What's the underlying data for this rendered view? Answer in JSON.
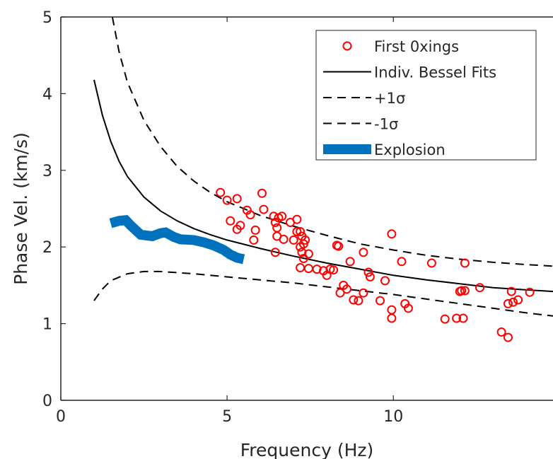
{
  "chart_data": {
    "type": "scatter",
    "title": "",
    "xlabel": "Frequency (Hz)",
    "ylabel": "Phase Vel. (km/s)",
    "xlim": [
      0,
      14.8
    ],
    "ylim": [
      0,
      5
    ],
    "x_ticks": [
      "0",
      "5",
      "10"
    ],
    "y_ticks": [
      "0",
      "1",
      "2",
      "3",
      "4",
      "5"
    ],
    "grid": false,
    "legend_position": "top-right",
    "series": [
      {
        "name": "First 0xings",
        "kind": "markers",
        "marker": "circle-open",
        "color": "#ff0000",
        "points": [
          [
            4.8,
            2.71
          ],
          [
            5.0,
            2.61
          ],
          [
            5.3,
            2.63
          ],
          [
            5.1,
            2.34
          ],
          [
            5.4,
            2.28
          ],
          [
            5.3,
            2.23
          ],
          [
            5.6,
            2.48
          ],
          [
            5.7,
            2.42
          ],
          [
            5.8,
            2.09
          ],
          [
            5.85,
            2.22
          ],
          [
            6.05,
            2.7
          ],
          [
            6.1,
            2.49
          ],
          [
            6.4,
            2.4
          ],
          [
            6.45,
            2.32
          ],
          [
            6.5,
            2.25
          ],
          [
            6.55,
            2.38
          ],
          [
            6.65,
            2.4
          ],
          [
            6.5,
            2.14
          ],
          [
            6.45,
            1.93
          ],
          [
            6.7,
            2.1
          ],
          [
            6.9,
            2.32
          ],
          [
            7.0,
            2.09
          ],
          [
            7.1,
            2.36
          ],
          [
            7.1,
            2.2
          ],
          [
            7.2,
            2.2
          ],
          [
            7.25,
            2.14
          ],
          [
            7.2,
            2.0
          ],
          [
            7.3,
            2.04
          ],
          [
            7.35,
            2.09
          ],
          [
            7.25,
            1.93
          ],
          [
            7.3,
            1.85
          ],
          [
            7.45,
            1.91
          ],
          [
            7.2,
            1.73
          ],
          [
            7.45,
            1.72
          ],
          [
            7.7,
            1.71
          ],
          [
            7.9,
            1.69
          ],
          [
            8.0,
            1.63
          ],
          [
            8.1,
            1.71
          ],
          [
            8.2,
            1.7
          ],
          [
            8.3,
            2.02
          ],
          [
            8.35,
            2.01
          ],
          [
            8.4,
            1.4
          ],
          [
            8.5,
            1.5
          ],
          [
            8.6,
            1.45
          ],
          [
            8.7,
            1.81
          ],
          [
            8.8,
            1.31
          ],
          [
            8.95,
            1.3
          ],
          [
            9.1,
            1.93
          ],
          [
            9.1,
            1.4
          ],
          [
            9.25,
            1.67
          ],
          [
            9.3,
            1.61
          ],
          [
            9.6,
            1.3
          ],
          [
            9.75,
            1.56
          ],
          [
            9.95,
            2.17
          ],
          [
            9.95,
            1.18
          ],
          [
            9.95,
            1.07
          ],
          [
            10.25,
            1.81
          ],
          [
            10.35,
            1.26
          ],
          [
            10.45,
            1.2
          ],
          [
            11.15,
            1.79
          ],
          [
            11.55,
            1.06
          ],
          [
            11.9,
            1.07
          ],
          [
            12.0,
            1.42
          ],
          [
            12.05,
            1.43
          ],
          [
            12.1,
            1.07
          ],
          [
            12.15,
            1.79
          ],
          [
            12.15,
            1.43
          ],
          [
            12.6,
            1.47
          ],
          [
            13.25,
            0.89
          ],
          [
            13.45,
            0.82
          ],
          [
            13.45,
            1.26
          ],
          [
            13.55,
            1.42
          ],
          [
            13.6,
            1.28
          ],
          [
            13.75,
            1.31
          ],
          [
            14.1,
            1.41
          ]
        ]
      },
      {
        "name": "Indiv. Bessel Fits",
        "kind": "line",
        "dash": "solid",
        "color": "#000000",
        "points": [
          [
            1.0,
            4.18
          ],
          [
            1.25,
            3.72
          ],
          [
            1.5,
            3.38
          ],
          [
            1.75,
            3.12
          ],
          [
            2.0,
            2.92
          ],
          [
            2.5,
            2.65
          ],
          [
            3.0,
            2.47
          ],
          [
            3.5,
            2.34
          ],
          [
            4.0,
            2.24
          ],
          [
            4.5,
            2.16
          ],
          [
            5.0,
            2.09
          ],
          [
            6.0,
            1.98
          ],
          [
            7.0,
            1.88
          ],
          [
            8.0,
            1.79
          ],
          [
            9.0,
            1.71
          ],
          [
            10.0,
            1.63
          ],
          [
            11.0,
            1.57
          ],
          [
            12.0,
            1.52
          ],
          [
            13.0,
            1.47
          ],
          [
            14.0,
            1.44
          ],
          [
            14.8,
            1.42
          ]
        ]
      },
      {
        "name": "+1σ",
        "kind": "line",
        "dash": "dashed",
        "color": "#000000",
        "points": [
          [
            1.55,
            5.0
          ],
          [
            1.75,
            4.55
          ],
          [
            2.0,
            4.15
          ],
          [
            2.5,
            3.65
          ],
          [
            3.0,
            3.31
          ],
          [
            3.5,
            3.05
          ],
          [
            4.0,
            2.86
          ],
          [
            4.5,
            2.71
          ],
          [
            5.0,
            2.59
          ],
          [
            6.0,
            2.41
          ],
          [
            7.0,
            2.27
          ],
          [
            8.0,
            2.15
          ],
          [
            9.0,
            2.04
          ],
          [
            10.0,
            1.96
          ],
          [
            11.0,
            1.89
          ],
          [
            12.0,
            1.84
          ],
          [
            13.0,
            1.8
          ],
          [
            14.0,
            1.77
          ],
          [
            14.8,
            1.75
          ]
        ]
      },
      {
        "name": "-1σ",
        "kind": "line",
        "dash": "dashed",
        "color": "#000000",
        "points": [
          [
            1.0,
            1.3
          ],
          [
            1.25,
            1.45
          ],
          [
            1.5,
            1.56
          ],
          [
            2.0,
            1.65
          ],
          [
            2.5,
            1.68
          ],
          [
            3.0,
            1.68
          ],
          [
            4.0,
            1.65
          ],
          [
            5.0,
            1.61
          ],
          [
            6.0,
            1.57
          ],
          [
            7.0,
            1.53
          ],
          [
            8.0,
            1.48
          ],
          [
            9.0,
            1.43
          ],
          [
            10.0,
            1.38
          ],
          [
            11.0,
            1.32
          ],
          [
            12.0,
            1.26
          ],
          [
            13.0,
            1.2
          ],
          [
            14.0,
            1.14
          ],
          [
            14.8,
            1.1
          ]
        ]
      },
      {
        "name": "Explosion",
        "kind": "line",
        "dash": "thick",
        "color": "#0072bd",
        "points": [
          [
            1.5,
            2.31
          ],
          [
            1.75,
            2.34
          ],
          [
            1.95,
            2.35
          ],
          [
            2.1,
            2.28
          ],
          [
            2.4,
            2.16
          ],
          [
            2.75,
            2.14
          ],
          [
            3.0,
            2.18
          ],
          [
            3.15,
            2.19
          ],
          [
            3.4,
            2.13
          ],
          [
            3.6,
            2.1
          ],
          [
            4.0,
            2.09
          ],
          [
            4.3,
            2.06
          ],
          [
            4.6,
            2.02
          ],
          [
            4.9,
            1.96
          ],
          [
            5.1,
            1.9
          ],
          [
            5.3,
            1.86
          ],
          [
            5.5,
            1.84
          ]
        ]
      }
    ]
  }
}
